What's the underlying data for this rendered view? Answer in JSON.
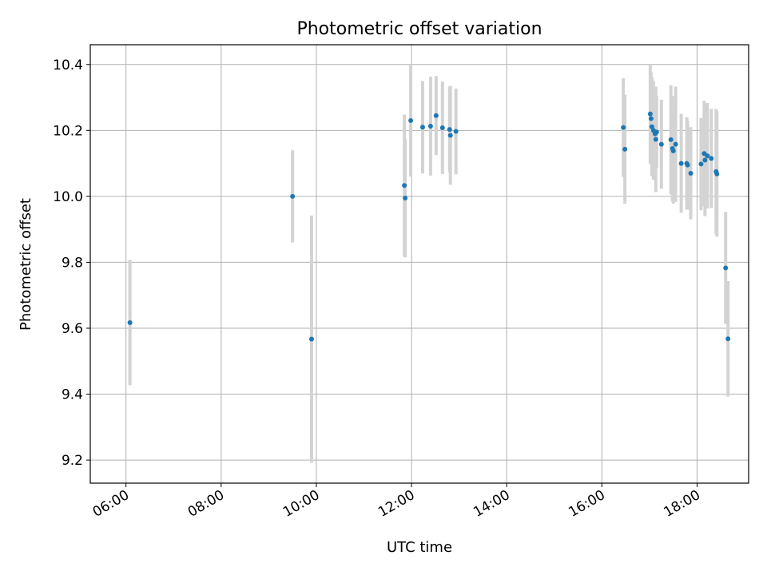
{
  "chart_data": {
    "type": "scatter",
    "title": "Photometric offset variation",
    "xlabel": "UTC time",
    "ylabel": "Photometric offset",
    "x_unit": "UTC time (HH:MM)",
    "xlim": [
      "05:15",
      "19:05"
    ],
    "ylim": [
      9.13,
      10.46
    ],
    "xticks": [
      "06:00",
      "08:00",
      "10:00",
      "12:00",
      "14:00",
      "16:00",
      "18:00"
    ],
    "yticks": [
      "9.2",
      "9.4",
      "9.6",
      "9.8",
      "10.0",
      "10.2",
      "10.4"
    ],
    "grid": true,
    "legend": "none",
    "marker_color": "#1f77b4",
    "errorbar_color": "#d3d3d3",
    "points": [
      {
        "x": "06:05",
        "y": 9.617,
        "err": 0.19
      },
      {
        "x": "09:30",
        "y": 10.0,
        "err": 0.14
      },
      {
        "x": "09:54",
        "y": 9.567,
        "err": 0.375
      },
      {
        "x": "11:51",
        "y": 10.033,
        "err": 0.215
      },
      {
        "x": "11:52",
        "y": 9.995,
        "err": 0.18
      },
      {
        "x": "11:59",
        "y": 10.23,
        "err": 0.17
      },
      {
        "x": "12:14",
        "y": 10.21,
        "err": 0.14
      },
      {
        "x": "12:24",
        "y": 10.213,
        "err": 0.15
      },
      {
        "x": "12:31",
        "y": 10.245,
        "err": 0.12
      },
      {
        "x": "12:39",
        "y": 10.208,
        "err": 0.14
      },
      {
        "x": "12:48",
        "y": 10.203,
        "err": 0.13
      },
      {
        "x": "12:49",
        "y": 10.185,
        "err": 0.15
      },
      {
        "x": "12:56",
        "y": 10.197,
        "err": 0.13
      },
      {
        "x": "16:27",
        "y": 10.209,
        "err": 0.15
      },
      {
        "x": "16:29",
        "y": 10.143,
        "err": 0.165
      },
      {
        "x": "17:01",
        "y": 10.25,
        "err": 0.15
      },
      {
        "x": "17:02",
        "y": 10.236,
        "err": 0.14
      },
      {
        "x": "17:03",
        "y": 10.211,
        "err": 0.15
      },
      {
        "x": "17:05",
        "y": 10.2,
        "err": 0.15
      },
      {
        "x": "17:07",
        "y": 10.19,
        "err": 0.14
      },
      {
        "x": "17:08",
        "y": 10.173,
        "err": 0.16
      },
      {
        "x": "17:09",
        "y": 10.195,
        "err": 0.11
      },
      {
        "x": "17:15",
        "y": 10.158,
        "err": 0.135
      },
      {
        "x": "17:27",
        "y": 10.172,
        "err": 0.165
      },
      {
        "x": "17:29",
        "y": 10.145,
        "err": 0.16
      },
      {
        "x": "17:30",
        "y": 10.138,
        "err": 0.16
      },
      {
        "x": "17:33",
        "y": 10.158,
        "err": 0.175
      },
      {
        "x": "17:40",
        "y": 10.1,
        "err": 0.15
      },
      {
        "x": "17:47",
        "y": 10.1,
        "err": 0.14
      },
      {
        "x": "17:48",
        "y": 10.095,
        "err": 0.135
      },
      {
        "x": "17:52",
        "y": 10.07,
        "err": 0.14
      },
      {
        "x": "18:05",
        "y": 10.098,
        "err": 0.14
      },
      {
        "x": "18:09",
        "y": 10.13,
        "err": 0.16
      },
      {
        "x": "18:10",
        "y": 10.11,
        "err": 0.17
      },
      {
        "x": "18:13",
        "y": 10.123,
        "err": 0.16
      },
      {
        "x": "18:18",
        "y": 10.115,
        "err": 0.15
      },
      {
        "x": "18:24",
        "y": 10.075,
        "err": 0.19
      },
      {
        "x": "18:25",
        "y": 10.068,
        "err": 0.19
      },
      {
        "x": "18:36",
        "y": 9.783,
        "err": 0.17
      },
      {
        "x": "18:39",
        "y": 9.568,
        "err": 0.175
      }
    ]
  }
}
